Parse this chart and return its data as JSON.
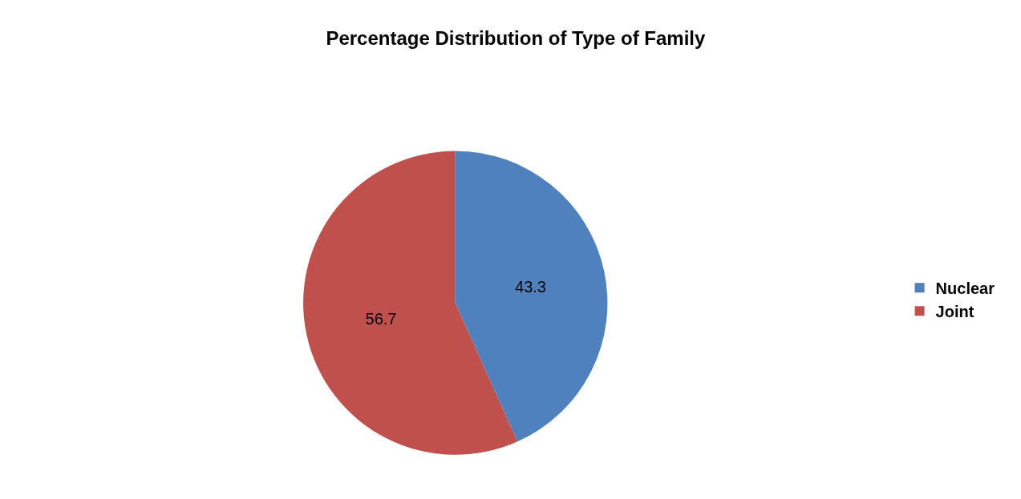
{
  "chart_data": {
    "type": "pie",
    "title": "Percentage Distribution of Type of Family",
    "categories": [
      "Nuclear",
      "Joint"
    ],
    "values": [
      43.3,
      56.7
    ],
    "colors": [
      "#4f81bd",
      "#c0504d"
    ],
    "data_labels": true,
    "legend": "right"
  }
}
